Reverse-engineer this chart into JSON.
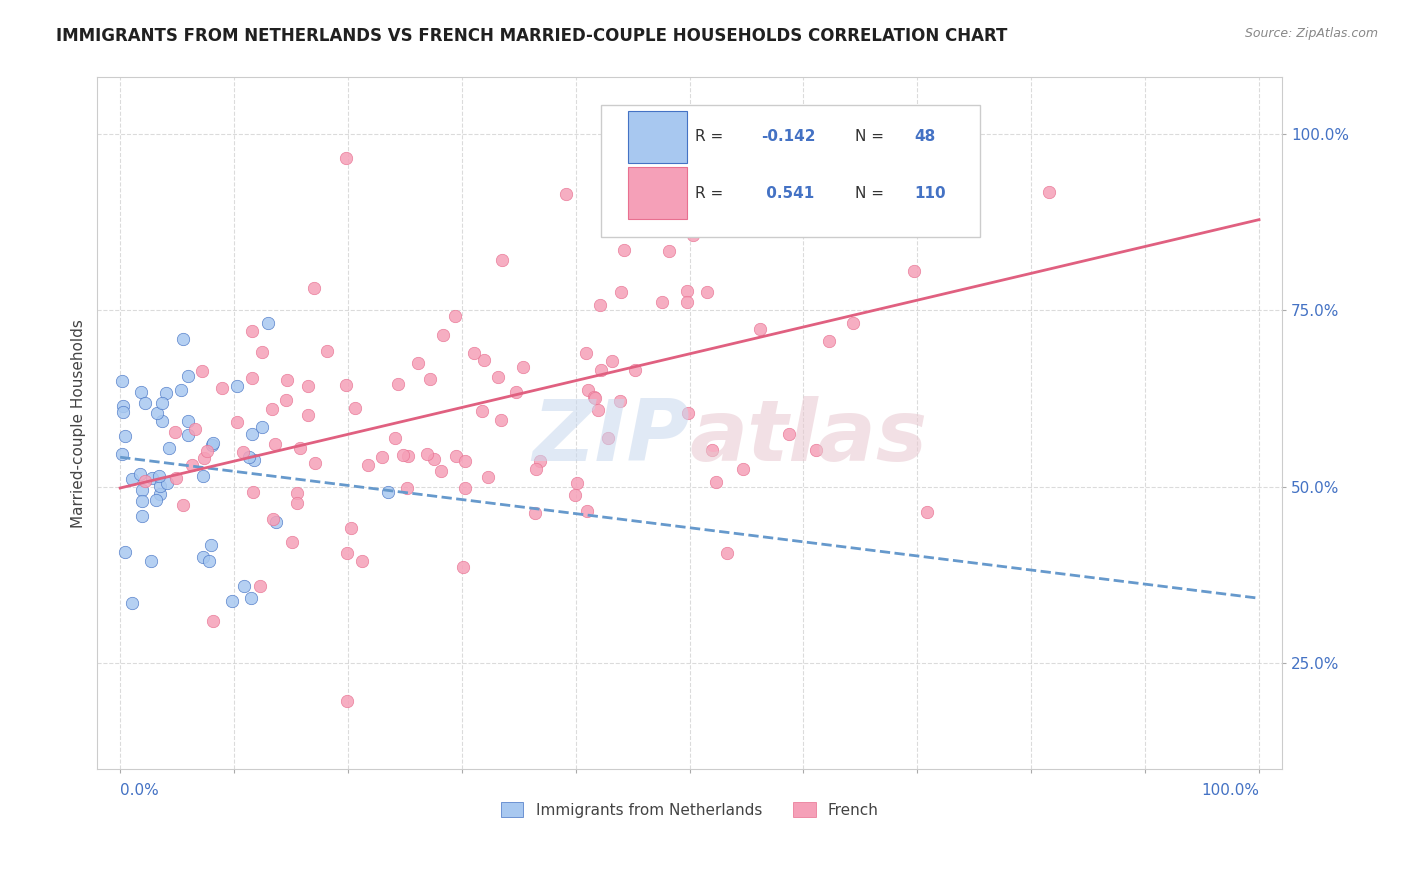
{
  "title": "IMMIGRANTS FROM NETHERLANDS VS FRENCH MARRIED-COUPLE HOUSEHOLDS CORRELATION CHART",
  "source": "Source: ZipAtlas.com",
  "ylabel": "Married-couple Households",
  "xlim": [
    0.0,
    1.0
  ],
  "yticks": [
    0.25,
    0.5,
    0.75,
    1.0
  ],
  "ytick_labels": [
    "25.0%",
    "50.0%",
    "75.0%",
    "100.0%"
  ],
  "r1": "-0.142",
  "n1": "48",
  "r2": "0.541",
  "n2": "110",
  "color_blue": "#a8c8f0",
  "color_pink": "#f5a0b8",
  "color_blue_dark": "#4472c4",
  "color_pink_dark": "#e87090",
  "color_line_blue": "#6699cc",
  "color_line_pink": "#e06080",
  "background_color": "#ffffff",
  "grid_color": "#cccccc",
  "title_color": "#202020",
  "axis_color": "#4472c4"
}
